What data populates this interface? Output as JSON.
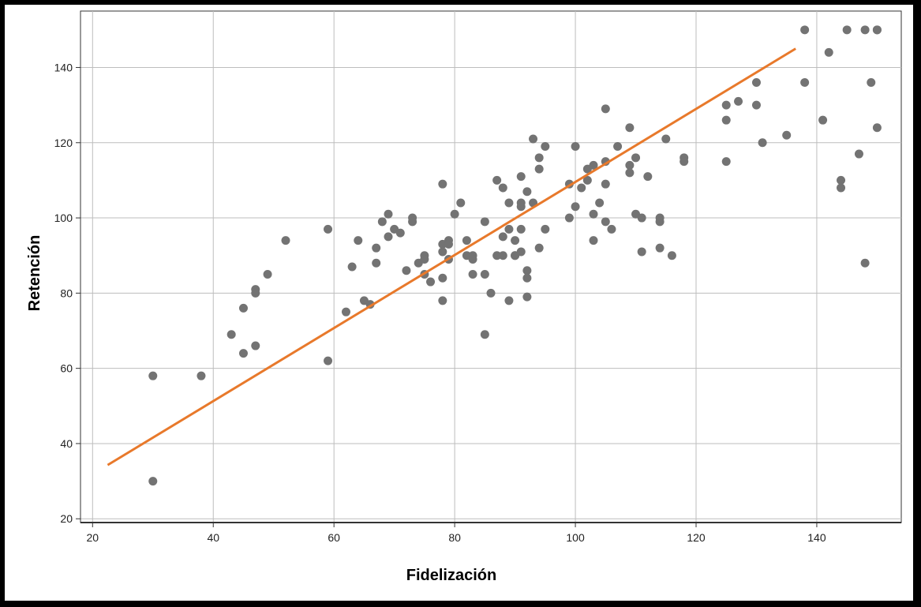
{
  "chart_data": {
    "type": "scatter",
    "title": "",
    "xlabel": "Fidelización",
    "ylabel": "Retención",
    "xlim": [
      18,
      154
    ],
    "ylim": [
      19,
      155
    ],
    "xticks": [
      20,
      40,
      60,
      80,
      100,
      120,
      140
    ],
    "yticks": [
      20,
      40,
      60,
      80,
      100,
      120,
      140
    ],
    "grid": true,
    "legend": "none",
    "colors": {
      "points": "#737373",
      "fit_line": "#E8792B",
      "grid": "#BDBDBD",
      "axis": "#333333",
      "border": "#000000"
    },
    "series": [
      {
        "x": [
          30,
          30,
          38,
          43,
          45,
          45,
          47,
          47,
          47,
          49,
          52,
          59,
          59,
          62,
          63,
          64,
          65,
          66,
          67,
          67,
          68,
          69,
          69,
          70,
          71,
          72,
          73,
          73,
          74,
          75,
          75,
          75,
          76,
          78,
          78,
          78,
          78,
          78,
          79,
          79,
          79,
          80,
          81,
          82,
          82,
          83,
          83,
          83,
          85,
          85,
          85,
          86,
          87,
          87,
          88,
          88,
          88,
          89,
          89,
          89,
          90,
          90,
          90,
          91,
          91,
          91,
          91,
          91,
          92,
          92,
          92,
          92,
          93,
          93,
          94,
          94,
          94,
          95,
          95,
          99,
          99,
          100,
          100,
          101,
          102,
          102,
          103,
          103,
          103,
          104,
          105,
          105,
          105,
          105,
          106,
          107,
          109,
          109,
          109,
          110,
          110,
          111,
          111,
          112,
          114,
          114,
          114,
          115,
          116,
          118,
          118,
          125,
          125,
          125,
          127,
          130,
          130,
          131,
          135,
          138,
          138,
          141,
          142,
          144,
          144,
          145,
          147,
          148,
          148,
          149,
          150,
          150,
          150
        ],
        "y": [
          58,
          30,
          58,
          69,
          76,
          64,
          81,
          80,
          66,
          85,
          94,
          97,
          62,
          75,
          87,
          94,
          78,
          77,
          92,
          88,
          99,
          101,
          95,
          97,
          96,
          86,
          100,
          99,
          88,
          90,
          89,
          85,
          83,
          109,
          93,
          91,
          84,
          78,
          94,
          93,
          89,
          101,
          104,
          94,
          90,
          90,
          89,
          85,
          99,
          85,
          69,
          80,
          110,
          90,
          108,
          95,
          90,
          104,
          97,
          78,
          94,
          90,
          90,
          111,
          104,
          103,
          97,
          91,
          107,
          86,
          84,
          79,
          121,
          104,
          116,
          113,
          92,
          119,
          97,
          109,
          100,
          119,
          103,
          108,
          113,
          110,
          114,
          101,
          94,
          104,
          129,
          115,
          109,
          99,
          97,
          119,
          124,
          114,
          112,
          116,
          101,
          100,
          91,
          111,
          100,
          99,
          92,
          121,
          90,
          116,
          115,
          130,
          126,
          115,
          131,
          136,
          130,
          120,
          122,
          150,
          136,
          126,
          144,
          110,
          108,
          150,
          117,
          150,
          88,
          136,
          150,
          150,
          124
        ]
      }
    ],
    "fit_line": {
      "x": [
        22.5,
        136.5
      ],
      "y": [
        34.3,
        145
      ]
    }
  }
}
